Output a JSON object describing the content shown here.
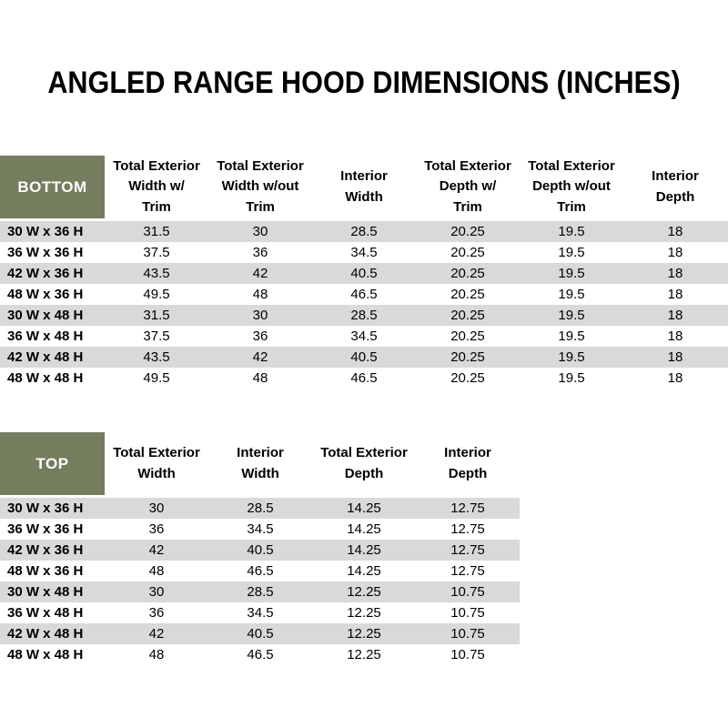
{
  "title": "ANGLED RANGE HOOD DIMENSIONS (INCHES)",
  "colors": {
    "header_green": "#757D5F",
    "row_stripe_gray": "#D9D9D9",
    "header_label_text": "#FFFFFF",
    "body_text": "#000000"
  },
  "bottom_table": {
    "label": "BOTTOM",
    "columns": [
      "Total Exterior\nWidth w/\nTrim",
      "Total Exterior\nWidth w/out\nTrim",
      "Interior\nWidth",
      "Total Exterior\nDepth w/\nTrim",
      "Total Exterior\nDepth w/out\nTrim",
      "Interior\nDepth"
    ],
    "rows": [
      {
        "label": "30 W x 36 H",
        "values": [
          "31.5",
          "30",
          "28.5",
          "20.25",
          "19.5",
          "18"
        ]
      },
      {
        "label": "36 W x 36 H",
        "values": [
          "37.5",
          "36",
          "34.5",
          "20.25",
          "19.5",
          "18"
        ]
      },
      {
        "label": "42 W x 36 H",
        "values": [
          "43.5",
          "42",
          "40.5",
          "20.25",
          "19.5",
          "18"
        ]
      },
      {
        "label": "48 W x 36 H",
        "values": [
          "49.5",
          "48",
          "46.5",
          "20.25",
          "19.5",
          "18"
        ]
      },
      {
        "label": "30 W x 48 H",
        "values": [
          "31.5",
          "30",
          "28.5",
          "20.25",
          "19.5",
          "18"
        ]
      },
      {
        "label": "36 W x 48 H",
        "values": [
          "37.5",
          "36",
          "34.5",
          "20.25",
          "19.5",
          "18"
        ]
      },
      {
        "label": "42 W x 48 H",
        "values": [
          "43.5",
          "42",
          "40.5",
          "20.25",
          "19.5",
          "18"
        ]
      },
      {
        "label": "48 W x 48 H",
        "values": [
          "49.5",
          "48",
          "46.5",
          "20.25",
          "19.5",
          "18"
        ]
      }
    ]
  },
  "top_table": {
    "label": "TOP",
    "columns": [
      "Total Exterior\nWidth",
      "Interior\nWidth",
      "Total Exterior\nDepth",
      "Interior\nDepth"
    ],
    "rows": [
      {
        "label": "30 W x 36 H",
        "values": [
          "30",
          "28.5",
          "14.25",
          "12.75"
        ]
      },
      {
        "label": "36 W x 36 H",
        "values": [
          "36",
          "34.5",
          "14.25",
          "12.75"
        ]
      },
      {
        "label": "42 W x 36 H",
        "values": [
          "42",
          "40.5",
          "14.25",
          "12.75"
        ]
      },
      {
        "label": "48 W x 36 H",
        "values": [
          "48",
          "46.5",
          "14.25",
          "12.75"
        ]
      },
      {
        "label": "30 W x 48 H",
        "values": [
          "30",
          "28.5",
          "12.25",
          "10.75"
        ]
      },
      {
        "label": "36 W x 48 H",
        "values": [
          "36",
          "34.5",
          "12.25",
          "10.75"
        ]
      },
      {
        "label": "42 W x 48 H",
        "values": [
          "42",
          "40.5",
          "12.25",
          "10.75"
        ]
      },
      {
        "label": "48 W x 48 H",
        "values": [
          "48",
          "46.5",
          "12.25",
          "10.75"
        ]
      }
    ]
  }
}
